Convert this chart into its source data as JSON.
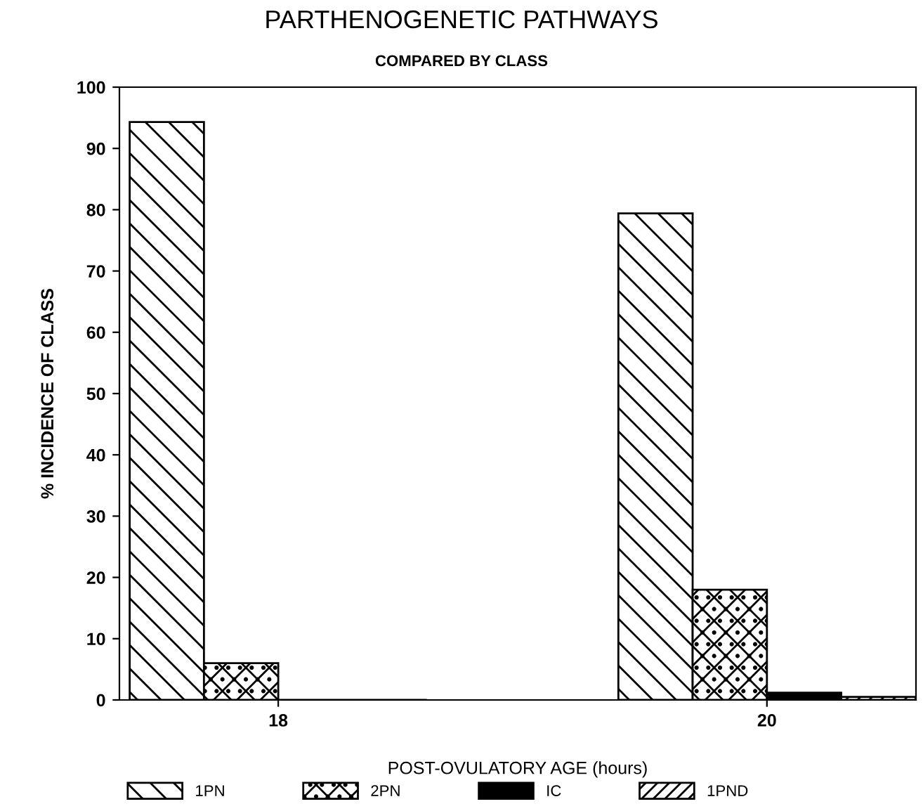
{
  "chart_data": {
    "type": "bar",
    "title": "PARTHENOGENETIC PATHWAYS",
    "subtitle": "COMPARED BY CLASS",
    "xlabel": "POST-OVULATORY AGE (hours)",
    "ylabel": "% INCIDENCE OF CLASS",
    "categories": [
      "18",
      "20"
    ],
    "series": [
      {
        "name": "1PN",
        "color": "#000000",
        "values": [
          94.3,
          79.4
        ]
      },
      {
        "name": "2PN",
        "color": "#000000",
        "values": [
          6,
          18
        ]
      },
      {
        "name": "IC",
        "color": "#000000",
        "values": [
          0,
          1.2
        ]
      },
      {
        "name": "1PND",
        "color": "#000000",
        "values": [
          0,
          0.5
        ]
      }
    ],
    "ylim": [
      0,
      100
    ],
    "yticks": [
      0,
      10,
      20,
      30,
      40,
      50,
      60,
      70,
      80,
      90,
      100
    ],
    "grid": false,
    "legend": "bottom"
  }
}
